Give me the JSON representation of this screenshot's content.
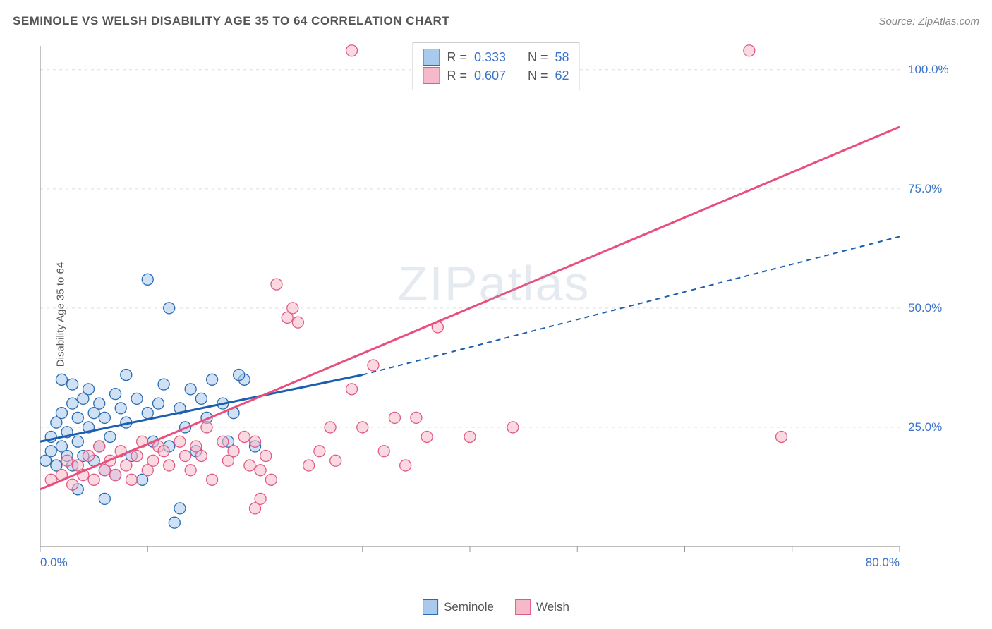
{
  "header": {
    "title": "SEMINOLE VS WELSH DISABILITY AGE 35 TO 64 CORRELATION CHART",
    "source": "Source: ZipAtlas.com"
  },
  "ylabel": "Disability Age 35 to 64",
  "watermark": {
    "zip": "ZIP",
    "atlas": "atlas"
  },
  "colors": {
    "blue_fill": "#a9c9ed",
    "blue_stroke": "#2b6cb0",
    "pink_fill": "#f5b9c9",
    "pink_stroke": "#e05a88",
    "blue_line": "#1c5fb0",
    "pink_line": "#e84f7d",
    "grid": "#dddddd",
    "axis_text_blue": "#3b73c9",
    "axis_text_gray": "#555555",
    "plot_border": "#999999"
  },
  "chart": {
    "type": "scatter",
    "xlim": [
      0,
      80
    ],
    "ylim": [
      0,
      105
    ],
    "xticks": [
      0,
      10,
      20,
      30,
      40,
      50,
      60,
      70,
      80
    ],
    "xtick_labels": {
      "0": "0.0%",
      "80": "80.0%"
    },
    "yticks": [
      25,
      50,
      75,
      100
    ],
    "ytick_labels": {
      "25": "25.0%",
      "50": "50.0%",
      "75": "75.0%",
      "100": "100.0%"
    },
    "marker_radius": 8,
    "marker_opacity": 0.55,
    "series": [
      {
        "name": "Seminole",
        "color_fill_key": "blue_fill",
        "color_stroke_key": "blue_stroke",
        "points": [
          [
            0.5,
            18
          ],
          [
            1,
            20
          ],
          [
            1,
            23
          ],
          [
            1.5,
            17
          ],
          [
            1.5,
            26
          ],
          [
            2,
            21
          ],
          [
            2,
            28
          ],
          [
            2,
            35
          ],
          [
            2.5,
            19
          ],
          [
            2.5,
            24
          ],
          [
            3,
            17
          ],
          [
            3,
            30
          ],
          [
            3,
            34
          ],
          [
            3.5,
            22
          ],
          [
            3.5,
            27
          ],
          [
            4,
            19
          ],
          [
            4,
            31
          ],
          [
            4.5,
            25
          ],
          [
            4.5,
            33
          ],
          [
            5,
            18
          ],
          [
            5,
            28
          ],
          [
            5.5,
            21
          ],
          [
            5.5,
            30
          ],
          [
            6,
            16
          ],
          [
            6,
            27
          ],
          [
            6.5,
            23
          ],
          [
            7,
            32
          ],
          [
            7,
            15
          ],
          [
            7.5,
            29
          ],
          [
            8,
            26
          ],
          [
            8,
            36
          ],
          [
            8.5,
            19
          ],
          [
            9,
            31
          ],
          [
            9.5,
            14
          ],
          [
            10,
            28
          ],
          [
            10,
            56
          ],
          [
            10.5,
            22
          ],
          [
            11,
            30
          ],
          [
            11.5,
            34
          ],
          [
            12,
            21
          ],
          [
            12,
            50
          ],
          [
            13,
            29
          ],
          [
            13.5,
            25
          ],
          [
            14,
            33
          ],
          [
            14.5,
            20
          ],
          [
            15,
            31
          ],
          [
            15.5,
            27
          ],
          [
            16,
            35
          ],
          [
            17,
            30
          ],
          [
            17.5,
            22
          ],
          [
            18,
            28
          ],
          [
            19,
            35
          ],
          [
            18.5,
            36
          ],
          [
            20,
            21
          ],
          [
            13,
            8
          ],
          [
            12.5,
            5
          ],
          [
            6,
            10
          ],
          [
            3.5,
            12
          ]
        ],
        "trend_solid": {
          "x1": 0,
          "y1": 22,
          "x2": 30,
          "y2": 36
        },
        "trend_dash": {
          "x1": 30,
          "y1": 36,
          "x2": 80,
          "y2": 65
        }
      },
      {
        "name": "Welsh",
        "color_fill_key": "pink_fill",
        "color_stroke_key": "pink_stroke",
        "points": [
          [
            1,
            14
          ],
          [
            2,
            15
          ],
          [
            2.5,
            18
          ],
          [
            3,
            13
          ],
          [
            3.5,
            17
          ],
          [
            4,
            15
          ],
          [
            4.5,
            19
          ],
          [
            5,
            14
          ],
          [
            5.5,
            21
          ],
          [
            6,
            16
          ],
          [
            6.5,
            18
          ],
          [
            7,
            15
          ],
          [
            7.5,
            20
          ],
          [
            8,
            17
          ],
          [
            8.5,
            14
          ],
          [
            9,
            19
          ],
          [
            9.5,
            22
          ],
          [
            10,
            16
          ],
          [
            10.5,
            18
          ],
          [
            11,
            21
          ],
          [
            11.5,
            20
          ],
          [
            12,
            17
          ],
          [
            13,
            22
          ],
          [
            13.5,
            19
          ],
          [
            14,
            16
          ],
          [
            14.5,
            21
          ],
          [
            15,
            19
          ],
          [
            15.5,
            25
          ],
          [
            16,
            14
          ],
          [
            17,
            22
          ],
          [
            17.5,
            18
          ],
          [
            18,
            20
          ],
          [
            19,
            23
          ],
          [
            19.5,
            17
          ],
          [
            20,
            22
          ],
          [
            20.5,
            16
          ],
          [
            21,
            19
          ],
          [
            21.5,
            14
          ],
          [
            22,
            55
          ],
          [
            23,
            48
          ],
          [
            23.5,
            50
          ],
          [
            24,
            47
          ],
          [
            25,
            17
          ],
          [
            26,
            20
          ],
          [
            27,
            25
          ],
          [
            27.5,
            18
          ],
          [
            29,
            33
          ],
          [
            30,
            25
          ],
          [
            31,
            38
          ],
          [
            32,
            20
          ],
          [
            33,
            27
          ],
          [
            34,
            17
          ],
          [
            35,
            27
          ],
          [
            36,
            23
          ],
          [
            37,
            46
          ],
          [
            40,
            23
          ],
          [
            44,
            25
          ],
          [
            29,
            104
          ],
          [
            66,
            104
          ],
          [
            69,
            23
          ],
          [
            20,
            8
          ],
          [
            20.5,
            10
          ]
        ],
        "trend_solid": {
          "x1": 0,
          "y1": 12,
          "x2": 80,
          "y2": 88
        }
      }
    ]
  },
  "stats_legend": {
    "rows": [
      {
        "swatch_fill_key": "blue_fill",
        "swatch_stroke_key": "blue_stroke",
        "r_label": "R =",
        "r_val": "0.333",
        "n_label": "N =",
        "n_val": "58"
      },
      {
        "swatch_fill_key": "pink_fill",
        "swatch_stroke_key": "pink_stroke",
        "r_label": "R =",
        "r_val": "0.607",
        "n_label": "N =",
        "n_val": "62"
      }
    ]
  },
  "bottom_legend": {
    "items": [
      {
        "swatch_fill_key": "blue_fill",
        "swatch_stroke_key": "blue_stroke",
        "label": "Seminole"
      },
      {
        "swatch_fill_key": "pink_fill",
        "swatch_stroke_key": "pink_stroke",
        "label": "Welsh"
      }
    ]
  }
}
